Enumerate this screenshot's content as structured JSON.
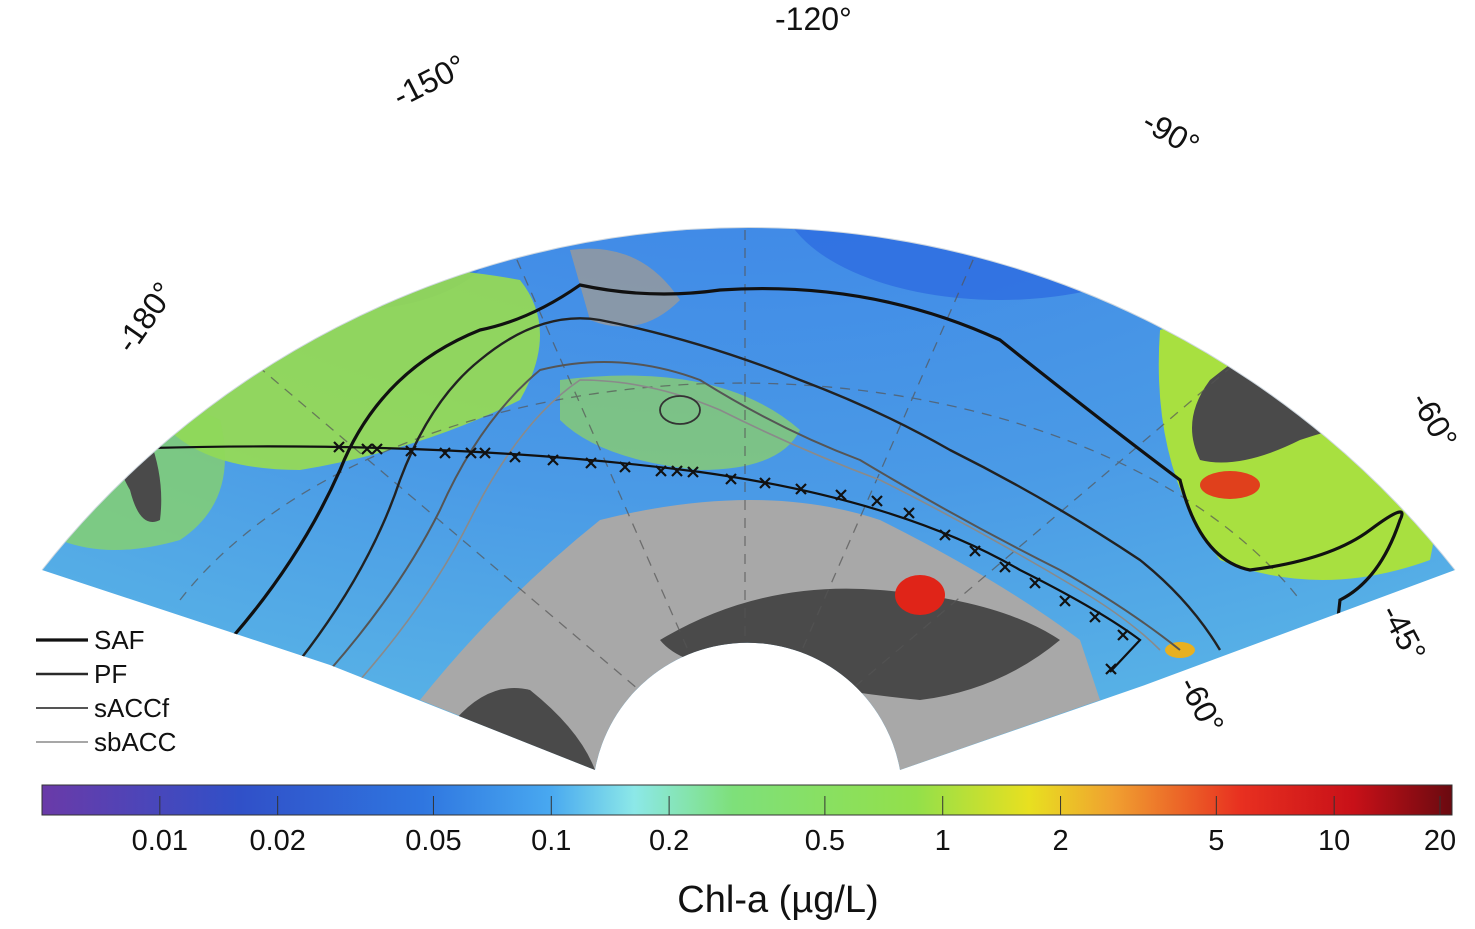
{
  "map": {
    "longitude_labels": [
      "-120°",
      "-150°",
      "-90°",
      "-180°",
      "-60°",
      "-45°"
    ],
    "latitude_labels": [
      "-60°"
    ],
    "front_legend": [
      {
        "label": "SAF",
        "color": "#111111"
      },
      {
        "label": "PF",
        "color": "#2a2a2a"
      },
      {
        "label": "sACCf",
        "color": "#555555"
      },
      {
        "label": "sbACC",
        "color": "#8a8a8a"
      }
    ],
    "colors": {
      "land": "#4a4a4a",
      "ice": "#a8a8a8",
      "low_chl": "#2f76e0",
      "mid_chl": "#93e04a",
      "high_chl": "#e0241c"
    }
  },
  "colorbar": {
    "title": "Chl-a (µg/L)",
    "scale": "log",
    "range": [
      0.005,
      20
    ],
    "ticks": [
      "0.01",
      "0.02",
      "0.05",
      "0.1",
      "0.2",
      "0.5",
      "1",
      "2",
      "5",
      "10",
      "20"
    ],
    "colors": [
      "#6a3aa8",
      "#3050c8",
      "#2f76e0",
      "#48a8f0",
      "#8ce8e8",
      "#7ee07a",
      "#93e04a",
      "#e8e020",
      "#f0a030",
      "#e83020",
      "#c81018",
      "#6a0a10"
    ]
  }
}
